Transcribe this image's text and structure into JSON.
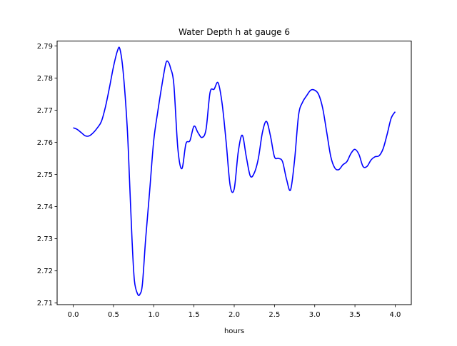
{
  "chart_data": {
    "type": "line",
    "title": "Water Depth h at gauge 6",
    "xlabel": "hours",
    "ylabel": "",
    "xlim": [
      -0.2,
      4.2
    ],
    "ylim": [
      2.7095,
      2.7915
    ],
    "grid": false,
    "legend": "none",
    "xticks": [
      0.0,
      0.5,
      1.0,
      1.5,
      2.0,
      2.5,
      3.0,
      3.5,
      4.0
    ],
    "xtick_labels": [
      "0.0",
      "0.5",
      "1.0",
      "1.5",
      "2.0",
      "2.5",
      "3.0",
      "3.5",
      "4.0"
    ],
    "yticks": [
      2.71,
      2.72,
      2.73,
      2.74,
      2.75,
      2.76,
      2.77,
      2.78,
      2.79
    ],
    "ytick_labels": [
      "2.71",
      "2.72",
      "2.73",
      "2.74",
      "2.75",
      "2.76",
      "2.77",
      "2.78",
      "2.79"
    ],
    "series": [
      {
        "color": "#0000ff",
        "x": [
          0.0,
          0.05,
          0.1,
          0.15,
          0.2,
          0.25,
          0.3,
          0.35,
          0.4,
          0.45,
          0.5,
          0.55,
          0.58,
          0.62,
          0.67,
          0.7,
          0.73,
          0.76,
          0.8,
          0.83,
          0.86,
          0.9,
          0.95,
          1.0,
          1.05,
          1.1,
          1.15,
          1.18,
          1.21,
          1.25,
          1.3,
          1.35,
          1.4,
          1.45,
          1.5,
          1.55,
          1.6,
          1.65,
          1.7,
          1.75,
          1.8,
          1.85,
          1.9,
          1.95,
          2.0,
          2.05,
          2.1,
          2.15,
          2.2,
          2.25,
          2.3,
          2.35,
          2.4,
          2.45,
          2.5,
          2.55,
          2.6,
          2.65,
          2.7,
          2.75,
          2.8,
          2.85,
          2.9,
          2.95,
          3.0,
          3.05,
          3.1,
          3.15,
          3.2,
          3.25,
          3.3,
          3.35,
          3.4,
          3.45,
          3.5,
          3.55,
          3.6,
          3.65,
          3.7,
          3.75,
          3.8,
          3.85,
          3.9,
          3.95,
          4.0
        ],
        "y": [
          2.7645,
          2.764,
          2.763,
          2.762,
          2.762,
          2.763,
          2.7645,
          2.7665,
          2.771,
          2.777,
          2.7835,
          2.7885,
          2.789,
          2.782,
          2.765,
          2.748,
          2.73,
          2.717,
          2.7128,
          2.7128,
          2.716,
          2.73,
          2.745,
          2.7605,
          2.7695,
          2.7775,
          2.7845,
          2.785,
          2.783,
          2.778,
          2.758,
          2.7518,
          2.7595,
          2.7605,
          2.765,
          2.763,
          2.7615,
          2.764,
          2.7755,
          2.7765,
          2.7785,
          2.772,
          2.76,
          2.7465,
          2.7455,
          2.757,
          2.7622,
          2.7555,
          2.7495,
          2.7505,
          2.755,
          2.763,
          2.7665,
          2.762,
          2.7555,
          2.755,
          2.754,
          2.7485,
          2.7452,
          2.7545,
          2.7685,
          2.7725,
          2.7745,
          2.7762,
          2.7762,
          2.7748,
          2.7705,
          2.763,
          2.7555,
          2.752,
          2.7515,
          2.753,
          2.754,
          2.7565,
          2.7578,
          2.7562,
          2.7525,
          2.7525,
          2.7545,
          2.7555,
          2.7558,
          2.758,
          2.7625,
          2.7675,
          2.7695
        ]
      }
    ]
  }
}
